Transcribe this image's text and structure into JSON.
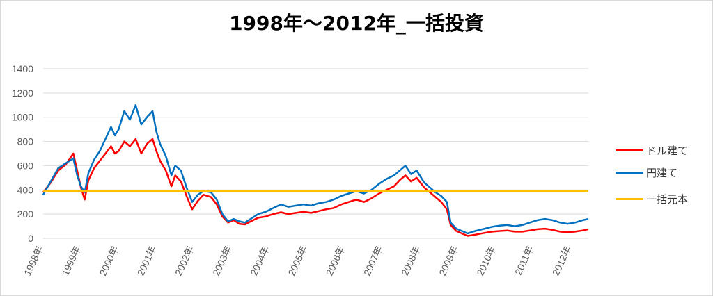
{
  "chart_data": {
    "type": "line",
    "title": "1998年～2012年_一括投資",
    "xlabel": "",
    "ylabel": "",
    "ylim": [
      0,
      1400
    ],
    "yticks": [
      0,
      200,
      400,
      600,
      800,
      1000,
      1200,
      1400
    ],
    "xlim": [
      1998,
      2012.45
    ],
    "xtick_labels": [
      "1998年",
      "1999年",
      "2000年",
      "2001年",
      "2002年",
      "2003年",
      "2004年",
      "2005年",
      "2006年",
      "2007年",
      "2008年",
      "2009年",
      "2010年",
      "2011年",
      "2012年"
    ],
    "grid": true,
    "legend_position": "right",
    "series": [
      {
        "name": "ドル建て",
        "color": "#ff0000",
        "points": [
          [
            1998.0,
            380
          ],
          [
            1998.2,
            460
          ],
          [
            1998.4,
            560
          ],
          [
            1998.6,
            610
          ],
          [
            1998.8,
            700
          ],
          [
            1998.9,
            560
          ],
          [
            1999.0,
            420
          ],
          [
            1999.1,
            320
          ],
          [
            1999.2,
            480
          ],
          [
            1999.35,
            580
          ],
          [
            1999.5,
            640
          ],
          [
            1999.65,
            700
          ],
          [
            1999.8,
            760
          ],
          [
            1999.9,
            700
          ],
          [
            2000.0,
            720
          ],
          [
            2000.15,
            800
          ],
          [
            2000.3,
            760
          ],
          [
            2000.45,
            820
          ],
          [
            2000.6,
            700
          ],
          [
            2000.75,
            780
          ],
          [
            2000.9,
            820
          ],
          [
            2001.0,
            720
          ],
          [
            2001.1,
            640
          ],
          [
            2001.25,
            560
          ],
          [
            2001.4,
            430
          ],
          [
            2001.5,
            520
          ],
          [
            2001.65,
            470
          ],
          [
            2001.8,
            350
          ],
          [
            2001.95,
            240
          ],
          [
            2002.1,
            310
          ],
          [
            2002.25,
            360
          ],
          [
            2002.45,
            340
          ],
          [
            2002.6,
            280
          ],
          [
            2002.75,
            180
          ],
          [
            2002.9,
            130
          ],
          [
            2003.05,
            150
          ],
          [
            2003.2,
            120
          ],
          [
            2003.35,
            115
          ],
          [
            2003.5,
            140
          ],
          [
            2003.7,
            170
          ],
          [
            2003.9,
            180
          ],
          [
            2004.1,
            200
          ],
          [
            2004.3,
            215
          ],
          [
            2004.5,
            200
          ],
          [
            2004.7,
            210
          ],
          [
            2004.9,
            220
          ],
          [
            2005.1,
            210
          ],
          [
            2005.3,
            225
          ],
          [
            2005.5,
            240
          ],
          [
            2005.7,
            250
          ],
          [
            2005.9,
            280
          ],
          [
            2006.1,
            300
          ],
          [
            2006.3,
            320
          ],
          [
            2006.5,
            300
          ],
          [
            2006.7,
            330
          ],
          [
            2006.9,
            370
          ],
          [
            2007.1,
            400
          ],
          [
            2007.3,
            430
          ],
          [
            2007.45,
            480
          ],
          [
            2007.6,
            520
          ],
          [
            2007.75,
            470
          ],
          [
            2007.9,
            500
          ],
          [
            2008.1,
            420
          ],
          [
            2008.25,
            380
          ],
          [
            2008.4,
            340
          ],
          [
            2008.55,
            300
          ],
          [
            2008.7,
            240
          ],
          [
            2008.8,
            110
          ],
          [
            2008.95,
            60
          ],
          [
            2009.1,
            40
          ],
          [
            2009.25,
            20
          ],
          [
            2009.45,
            30
          ],
          [
            2009.7,
            45
          ],
          [
            2009.9,
            55
          ],
          [
            2010.1,
            60
          ],
          [
            2010.3,
            65
          ],
          [
            2010.5,
            55
          ],
          [
            2010.7,
            55
          ],
          [
            2010.9,
            65
          ],
          [
            2011.1,
            75
          ],
          [
            2011.3,
            80
          ],
          [
            2011.5,
            70
          ],
          [
            2011.7,
            55
          ],
          [
            2011.9,
            50
          ],
          [
            2012.1,
            55
          ],
          [
            2012.3,
            65
          ],
          [
            2012.45,
            75
          ]
        ]
      },
      {
        "name": "円建て",
        "color": "#0070c0",
        "points": [
          [
            1998.0,
            360
          ],
          [
            1998.2,
            470
          ],
          [
            1998.4,
            580
          ],
          [
            1998.6,
            620
          ],
          [
            1998.8,
            660
          ],
          [
            1998.9,
            520
          ],
          [
            1999.0,
            430
          ],
          [
            1999.1,
            380
          ],
          [
            1999.2,
            540
          ],
          [
            1999.35,
            650
          ],
          [
            1999.5,
            720
          ],
          [
            1999.65,
            820
          ],
          [
            1999.8,
            920
          ],
          [
            1999.9,
            850
          ],
          [
            2000.0,
            900
          ],
          [
            2000.15,
            1050
          ],
          [
            2000.3,
            980
          ],
          [
            2000.45,
            1100
          ],
          [
            2000.6,
            940
          ],
          [
            2000.75,
            1000
          ],
          [
            2000.9,
            1050
          ],
          [
            2001.0,
            880
          ],
          [
            2001.1,
            780
          ],
          [
            2001.25,
            680
          ],
          [
            2001.4,
            520
          ],
          [
            2001.5,
            600
          ],
          [
            2001.65,
            560
          ],
          [
            2001.8,
            420
          ],
          [
            2001.95,
            300
          ],
          [
            2002.1,
            360
          ],
          [
            2002.25,
            390
          ],
          [
            2002.45,
            380
          ],
          [
            2002.6,
            320
          ],
          [
            2002.75,
            200
          ],
          [
            2002.9,
            140
          ],
          [
            2003.05,
            160
          ],
          [
            2003.2,
            140
          ],
          [
            2003.35,
            130
          ],
          [
            2003.5,
            160
          ],
          [
            2003.7,
            200
          ],
          [
            2003.9,
            220
          ],
          [
            2004.1,
            250
          ],
          [
            2004.3,
            280
          ],
          [
            2004.5,
            260
          ],
          [
            2004.7,
            270
          ],
          [
            2004.9,
            280
          ],
          [
            2005.1,
            270
          ],
          [
            2005.3,
            290
          ],
          [
            2005.5,
            300
          ],
          [
            2005.7,
            320
          ],
          [
            2005.9,
            350
          ],
          [
            2006.1,
            370
          ],
          [
            2006.3,
            390
          ],
          [
            2006.5,
            370
          ],
          [
            2006.7,
            400
          ],
          [
            2006.9,
            450
          ],
          [
            2007.1,
            490
          ],
          [
            2007.3,
            520
          ],
          [
            2007.45,
            560
          ],
          [
            2007.6,
            600
          ],
          [
            2007.75,
            530
          ],
          [
            2007.9,
            560
          ],
          [
            2008.1,
            460
          ],
          [
            2008.25,
            420
          ],
          [
            2008.4,
            380
          ],
          [
            2008.55,
            350
          ],
          [
            2008.7,
            300
          ],
          [
            2008.8,
            130
          ],
          [
            2008.95,
            80
          ],
          [
            2009.1,
            60
          ],
          [
            2009.25,
            40
          ],
          [
            2009.45,
            60
          ],
          [
            2009.7,
            80
          ],
          [
            2009.9,
            95
          ],
          [
            2010.1,
            105
          ],
          [
            2010.3,
            110
          ],
          [
            2010.5,
            100
          ],
          [
            2010.7,
            110
          ],
          [
            2010.9,
            130
          ],
          [
            2011.1,
            150
          ],
          [
            2011.3,
            160
          ],
          [
            2011.5,
            150
          ],
          [
            2011.7,
            130
          ],
          [
            2011.9,
            120
          ],
          [
            2012.1,
            130
          ],
          [
            2012.3,
            150
          ],
          [
            2012.45,
            160
          ]
        ]
      },
      {
        "name": "一括元本",
        "color": "#ffc000",
        "points": [
          [
            1998.0,
            390
          ],
          [
            2012.45,
            390
          ]
        ]
      }
    ]
  }
}
